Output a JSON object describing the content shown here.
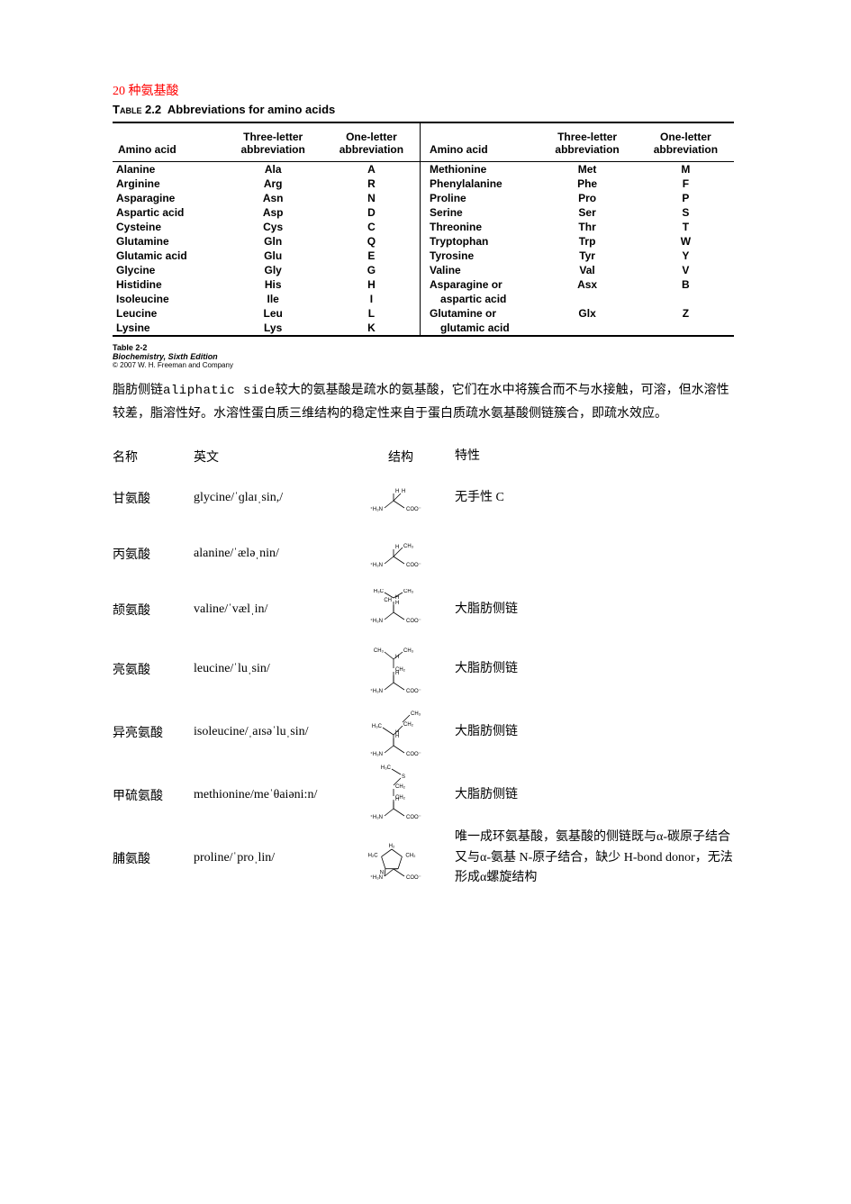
{
  "title": "20 种氨基酸",
  "abbrTable": {
    "caption_label": "Table 2.2",
    "caption_text": "Abbreviations for amino acids",
    "headers": {
      "name": "Amino acid",
      "three": "Three-letter abbreviation",
      "one": "One-letter abbreviation"
    },
    "left": [
      {
        "name": "Alanine",
        "three": "Ala",
        "one": "A"
      },
      {
        "name": "Arginine",
        "three": "Arg",
        "one": "R"
      },
      {
        "name": "Asparagine",
        "three": "Asn",
        "one": "N"
      },
      {
        "name": "Aspartic acid",
        "three": "Asp",
        "one": "D"
      },
      {
        "name": "Cysteine",
        "three": "Cys",
        "one": "C"
      },
      {
        "name": "Glutamine",
        "three": "Gln",
        "one": "Q"
      },
      {
        "name": "Glutamic acid",
        "three": "Glu",
        "one": "E"
      },
      {
        "name": "Glycine",
        "three": "Gly",
        "one": "G"
      },
      {
        "name": "Histidine",
        "three": "His",
        "one": "H"
      },
      {
        "name": "Isoleucine",
        "three": "Ile",
        "one": "I"
      },
      {
        "name": "Leucine",
        "three": "Leu",
        "one": "L"
      },
      {
        "name": "Lysine",
        "three": "Lys",
        "one": "K"
      }
    ],
    "right": [
      {
        "name": "Methionine",
        "three": "Met",
        "one": "M"
      },
      {
        "name": "Phenylalanine",
        "three": "Phe",
        "one": "F"
      },
      {
        "name": "Proline",
        "three": "Pro",
        "one": "P"
      },
      {
        "name": "Serine",
        "three": "Ser",
        "one": "S"
      },
      {
        "name": "Threonine",
        "three": "Thr",
        "one": "T"
      },
      {
        "name": "Tryptophan",
        "three": "Trp",
        "one": "W"
      },
      {
        "name": "Tyrosine",
        "three": "Tyr",
        "one": "Y"
      },
      {
        "name": "Valine",
        "three": "Val",
        "one": "V"
      },
      {
        "name": "Asparagine or",
        "three": "Asx",
        "one": "B"
      },
      {
        "name": "  aspartic acid",
        "three": "",
        "one": ""
      },
      {
        "name": "Glutamine or",
        "three": "Glx",
        "one": "Z"
      },
      {
        "name": "  glutamic acid",
        "three": "",
        "one": ""
      }
    ],
    "footnote": {
      "l1": "Table 2-2",
      "l2": "Biochemistry, Sixth Edition",
      "l3": "© 2007 W. H. Freeman and Company"
    }
  },
  "paragraph": {
    "pre": "脂肪侧链",
    "mono": "aliphatic side",
    "rest": "较大的氨基酸是疏水的氨基酸，它们在水中将簇合而不与水接触，可溶，但水溶性较差，脂溶性好。水溶性蛋白质三维结构的稳定性来自于蛋白质疏水氨基酸侧链簇合，即疏水效应。"
  },
  "aaList": {
    "headers": {
      "name": "名称",
      "en": "英文",
      "struct": "结构",
      "prop": "特性"
    },
    "rows": [
      {
        "name": "甘氨酸",
        "en": "glycine/ˈɡlaɪˌsin,/",
        "prop": "无手性 C",
        "kind": "gly"
      },
      {
        "name": "丙氨酸",
        "en": "alanine/ˈæləˌnin/",
        "prop": "",
        "kind": "ala"
      },
      {
        "name": "颉氨酸",
        "en": "valine/ˈvælˌin/",
        "prop": "大脂肪侧链",
        "kind": "val"
      },
      {
        "name": "亮氨酸",
        "en": "leucine/ˈluˌsin/",
        "prop": "大脂肪侧链",
        "kind": "leu"
      },
      {
        "name": "异亮氨酸",
        "en": "isoleucine/ˌaɪsəˈluˌsin/",
        "prop": "大脂肪侧链",
        "kind": "ile"
      },
      {
        "name": "甲硫氨酸",
        "en": "methionine/meˈθaiəni:n/",
        "prop": "大脂肪侧链",
        "kind": "met"
      },
      {
        "name": "脯氨酸",
        "en": "proline/ˈproˌlin/",
        "prop": "唯一成环氨基酸，氨基酸的侧链既与α-碳原子结合又与α-氨基 N-原子结合，缺少 H-bond donor，无法形成α螺旋结构",
        "kind": "pro"
      }
    ]
  },
  "style": {
    "titleColor": "#ff0000",
    "textColor": "#000000",
    "background": "#ffffff",
    "tableFont": "Arial",
    "bodyFont": "SimSun"
  }
}
